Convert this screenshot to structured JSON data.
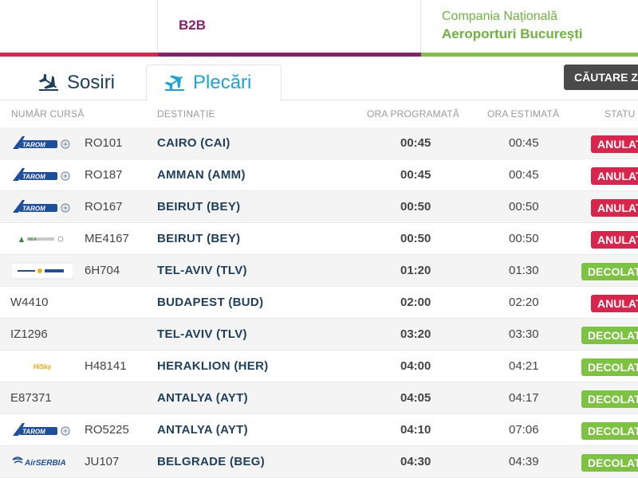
{
  "header": {
    "b2b_label": "B2B",
    "company_line1": "Compania Națională",
    "company_line2": "Aeroporturi București"
  },
  "tabs": {
    "arrivals": "Sosiri",
    "departures": "Plecări"
  },
  "search_button": "CĂUTARE Z",
  "columns": {
    "flight": "NUMĂR CURSĂ",
    "destination": "DESTINAȚIE",
    "scheduled": "ORA PROGRAMATĂ",
    "estimated": "ORA ESTIMATĂ",
    "status": "STATU"
  },
  "colors": {
    "red": "#d7264b",
    "purple": "#8a1f6d",
    "green": "#7dc242",
    "navy": "#1d3f5c",
    "blue": "#1ea3d6"
  },
  "flights": [
    {
      "logo": "tarom-logo",
      "flight": "RO101",
      "destination": "CAIRO (CAI)",
      "scheduled": "00:45",
      "estimated": "00:45",
      "status": "ANULAT"
    },
    {
      "logo": "tarom-logo",
      "flight": "RO187",
      "destination": "AMMAN (AMM)",
      "scheduled": "00:45",
      "estimated": "00:45",
      "status": "ANULAT"
    },
    {
      "logo": "tarom-logo",
      "flight": "RO167",
      "destination": "BEIRUT (BEY)",
      "scheduled": "00:50",
      "estimated": "00:50",
      "status": "ANULAT"
    },
    {
      "logo": "mea-logo",
      "flight": "ME4167",
      "destination": "BEIRUT (BEY)",
      "scheduled": "00:50",
      "estimated": "00:50",
      "status": "ANULAT"
    },
    {
      "logo": "israir-logo",
      "flight": "6H704",
      "destination": "TEL-AVIV (TLV)",
      "scheduled": "01:20",
      "estimated": "01:30",
      "status": "DECOLAT"
    },
    {
      "logo": "",
      "flight": "W4410",
      "destination": "BUDAPEST (BUD)",
      "scheduled": "02:00",
      "estimated": "02:20",
      "status": "ANULAT"
    },
    {
      "logo": "",
      "flight": "IZ1296",
      "destination": "TEL-AVIV (TLV)",
      "scheduled": "03:20",
      "estimated": "03:30",
      "status": "DECOLAT"
    },
    {
      "logo": "hisky-logo",
      "flight": "H48141",
      "destination": "HERAKLION (HER)",
      "scheduled": "04:00",
      "estimated": "04:21",
      "status": "DECOLAT"
    },
    {
      "logo": "",
      "flight": "E87371",
      "destination": "ANTALYA (AYT)",
      "scheduled": "04:05",
      "estimated": "04:17",
      "status": "DECOLAT"
    },
    {
      "logo": "tarom-logo",
      "flight": "RO5225",
      "destination": "ANTALYA (AYT)",
      "scheduled": "04:10",
      "estimated": "07:06",
      "status": "DECOLAT"
    },
    {
      "logo": "airserbia-logo",
      "flight": "JU107",
      "destination": "BELGRADE (BEG)",
      "scheduled": "04:30",
      "estimated": "04:39",
      "status": "DECOLAT"
    }
  ]
}
